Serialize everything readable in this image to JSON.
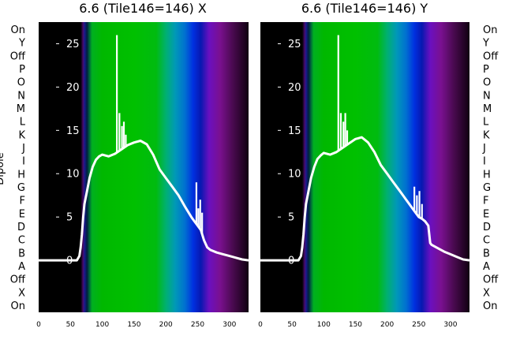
{
  "figure": {
    "ylabel": "Dipole",
    "dipole_labels": [
      "On",
      "Y",
      "Off",
      "P",
      "O",
      "N",
      "M",
      "L",
      "K",
      "J",
      "I",
      "H",
      "G",
      "F",
      "E",
      "D",
      "C",
      "B",
      "A",
      "Off",
      "X",
      "On"
    ]
  },
  "chart_data": [
    {
      "type": "heatmap",
      "title": "6.6 (Tile146=146) X",
      "xlabel": "",
      "ylabel": "Dipole",
      "xlim": [
        0,
        330
      ],
      "x_ticks": [
        0,
        50,
        100,
        150,
        200,
        250,
        300
      ],
      "overlay_ylim": [
        -6,
        27.5
      ],
      "overlay_y_ticks": [
        0,
        5,
        10,
        15,
        20,
        25
      ],
      "spectrum_colors": [
        {
          "x": 0,
          "color": "#000000"
        },
        {
          "x": 66,
          "color": "#000000"
        },
        {
          "x": 70,
          "color": "#4a0a6e"
        },
        {
          "x": 72,
          "color": "#1a1a90"
        },
        {
          "x": 76,
          "color": "#002040"
        },
        {
          "x": 80,
          "color": "#006a3a"
        },
        {
          "x": 84,
          "color": "#00b020"
        },
        {
          "x": 100,
          "color": "#00b800"
        },
        {
          "x": 150,
          "color": "#00c000"
        },
        {
          "x": 185,
          "color": "#00bb10"
        },
        {
          "x": 200,
          "color": "#00b070"
        },
        {
          "x": 215,
          "color": "#0098b8"
        },
        {
          "x": 230,
          "color": "#0070d0"
        },
        {
          "x": 243,
          "color": "#0030e0"
        },
        {
          "x": 255,
          "color": "#0818b0"
        },
        {
          "x": 268,
          "color": "#6a10c0"
        },
        {
          "x": 285,
          "color": "#7a1090"
        },
        {
          "x": 305,
          "color": "#4a0a50"
        },
        {
          "x": 330,
          "color": "#100010"
        }
      ],
      "line": {
        "x": [
          0,
          60,
          64,
          66,
          68,
          70,
          72,
          76,
          80,
          85,
          90,
          95,
          100,
          110,
          120,
          130,
          140,
          150,
          160,
          170,
          180,
          190,
          200,
          210,
          220,
          230,
          240,
          245,
          250,
          255,
          260,
          265,
          270,
          280,
          290,
          300,
          310,
          320,
          330
        ],
        "y": [
          0,
          0,
          0.5,
          1.5,
          3,
          5,
          6.5,
          8,
          9.5,
          10.8,
          11.6,
          12,
          12.2,
          12,
          12.3,
          12.8,
          13.3,
          13.6,
          13.8,
          13.4,
          12.2,
          10.5,
          9.5,
          8.5,
          7.5,
          6.2,
          5,
          4.5,
          4,
          3.5,
          2.3,
          1.5,
          1.2,
          0.9,
          0.7,
          0.5,
          0.3,
          0.1,
          0
        ],
        "spikes": [
          {
            "x": 123,
            "y": 26
          },
          {
            "x": 127,
            "y": 17
          },
          {
            "x": 131,
            "y": 15.5
          },
          {
            "x": 134,
            "y": 16
          },
          {
            "x": 137,
            "y": 14.5
          },
          {
            "x": 248,
            "y": 9
          },
          {
            "x": 251,
            "y": 6
          },
          {
            "x": 254,
            "y": 7
          },
          {
            "x": 257,
            "y": 5.5
          }
        ]
      }
    },
    {
      "type": "heatmap",
      "title": "6.6 (Tile146=146) Y",
      "xlabel": "",
      "ylabel": "Dipole",
      "xlim": [
        0,
        330
      ],
      "x_ticks": [
        0,
        50,
        100,
        150,
        200,
        250,
        300
      ],
      "overlay_ylim": [
        -6,
        27.5
      ],
      "overlay_y_ticks": [
        0,
        5,
        10,
        15,
        20,
        25
      ],
      "spectrum_colors": [
        {
          "x": 0,
          "color": "#000000"
        },
        {
          "x": 66,
          "color": "#000000"
        },
        {
          "x": 70,
          "color": "#4a0a6e"
        },
        {
          "x": 72,
          "color": "#1a1a90"
        },
        {
          "x": 76,
          "color": "#002040"
        },
        {
          "x": 80,
          "color": "#006a3a"
        },
        {
          "x": 84,
          "color": "#00b020"
        },
        {
          "x": 100,
          "color": "#00b800"
        },
        {
          "x": 150,
          "color": "#00c000"
        },
        {
          "x": 185,
          "color": "#00bb10"
        },
        {
          "x": 200,
          "color": "#00b070"
        },
        {
          "x": 215,
          "color": "#0098b8"
        },
        {
          "x": 230,
          "color": "#0070d0"
        },
        {
          "x": 243,
          "color": "#0030e0"
        },
        {
          "x": 255,
          "color": "#0818b0"
        },
        {
          "x": 268,
          "color": "#6a10c0"
        },
        {
          "x": 285,
          "color": "#7a1090"
        },
        {
          "x": 305,
          "color": "#4a0a50"
        },
        {
          "x": 330,
          "color": "#100010"
        }
      ],
      "line": {
        "x": [
          0,
          60,
          64,
          66,
          68,
          70,
          72,
          76,
          80,
          85,
          90,
          95,
          100,
          110,
          120,
          130,
          140,
          150,
          160,
          170,
          180,
          190,
          200,
          210,
          220,
          230,
          240,
          245,
          250,
          255,
          260,
          265,
          268,
          270,
          280,
          290,
          300,
          310,
          320,
          330
        ],
        "y": [
          0,
          0,
          0.5,
          1.5,
          3,
          5,
          6.5,
          8,
          9.5,
          10.8,
          11.7,
          12.1,
          12.4,
          12.2,
          12.5,
          13,
          13.5,
          14,
          14.2,
          13.6,
          12.5,
          11,
          10,
          9,
          8,
          7,
          6,
          5.5,
          5,
          4.8,
          4.5,
          4,
          2,
          1.8,
          1.4,
          1,
          0.7,
          0.4,
          0.1,
          0
        ],
        "spikes": [
          {
            "x": 123,
            "y": 26
          },
          {
            "x": 127,
            "y": 17
          },
          {
            "x": 131,
            "y": 16
          },
          {
            "x": 134,
            "y": 17
          },
          {
            "x": 137,
            "y": 15
          },
          {
            "x": 243,
            "y": 8.5
          },
          {
            "x": 247,
            "y": 7.5
          },
          {
            "x": 251,
            "y": 8
          },
          {
            "x": 255,
            "y": 6.5
          }
        ]
      }
    }
  ]
}
